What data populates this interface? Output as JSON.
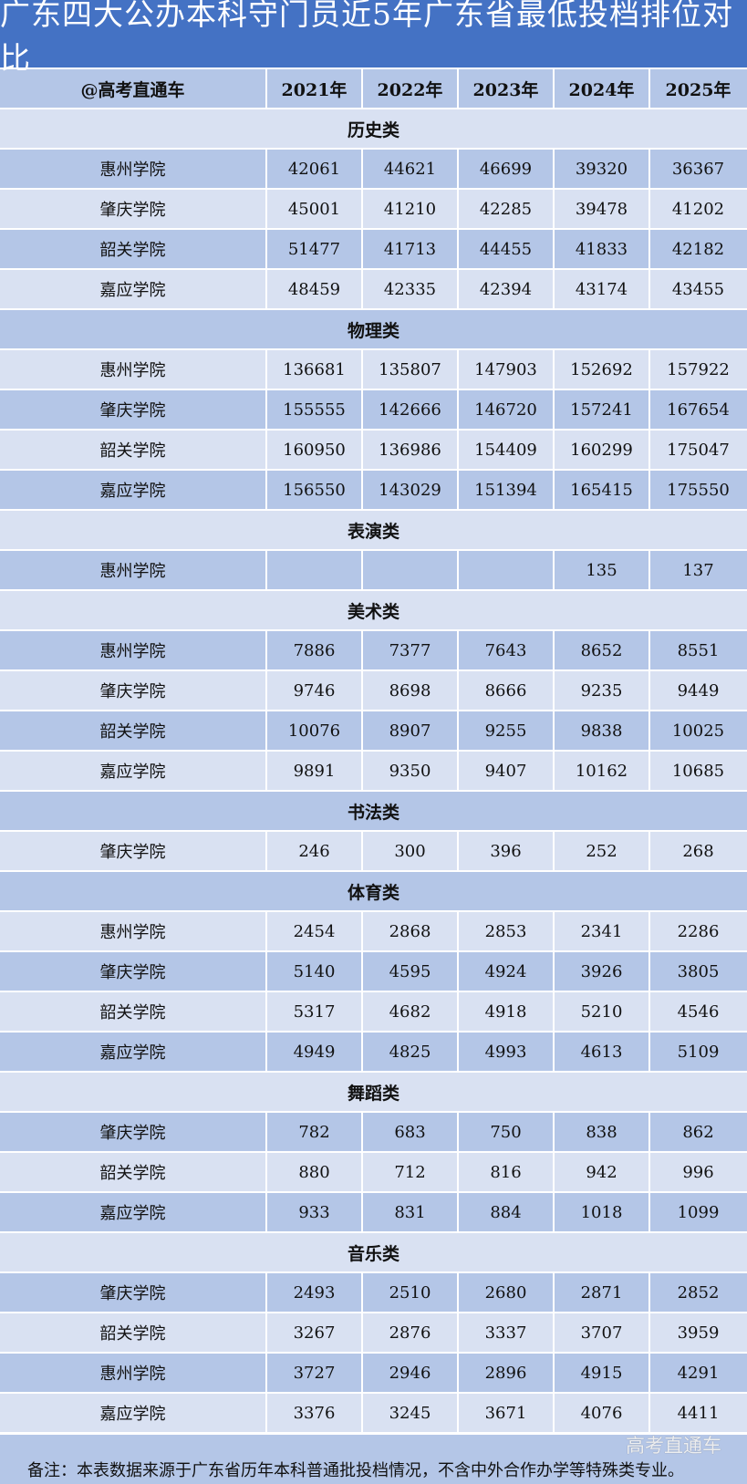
{
  "title": "广东四大公办本科守门员近5年广东省最低投档排位对比",
  "header": {
    "corner": "@高考直通车",
    "years": [
      "2021年",
      "2022年",
      "2023年",
      "2024年",
      "2025年"
    ]
  },
  "colors": {
    "title_bg": "#4472C4",
    "row_dark": "#B4C6E7",
    "row_light": "#D9E1F2"
  },
  "sections": [
    {
      "name": "历史类",
      "rows": [
        {
          "school": "惠州学院",
          "values": [
            "42061",
            "44621",
            "46699",
            "39320",
            "36367"
          ]
        },
        {
          "school": "肇庆学院",
          "values": [
            "45001",
            "41210",
            "42285",
            "39478",
            "41202"
          ]
        },
        {
          "school": "韶关学院",
          "values": [
            "51477",
            "41713",
            "44455",
            "41833",
            "42182"
          ]
        },
        {
          "school": "嘉应学院",
          "values": [
            "48459",
            "42335",
            "42394",
            "43174",
            "43455"
          ]
        }
      ]
    },
    {
      "name": "物理类",
      "rows": [
        {
          "school": "惠州学院",
          "values": [
            "136681",
            "135807",
            "147903",
            "152692",
            "157922"
          ]
        },
        {
          "school": "肇庆学院",
          "values": [
            "155555",
            "142666",
            "146720",
            "157241",
            "167654"
          ]
        },
        {
          "school": "韶关学院",
          "values": [
            "160950",
            "136986",
            "154409",
            "160299",
            "175047"
          ]
        },
        {
          "school": "嘉应学院",
          "values": [
            "156550",
            "143029",
            "151394",
            "165415",
            "175550"
          ]
        }
      ]
    },
    {
      "name": "表演类",
      "rows": [
        {
          "school": "惠州学院",
          "values": [
            "",
            "",
            "",
            "135",
            "137"
          ]
        }
      ]
    },
    {
      "name": "美术类",
      "rows": [
        {
          "school": "惠州学院",
          "values": [
            "7886",
            "7377",
            "7643",
            "8652",
            "8551"
          ]
        },
        {
          "school": "肇庆学院",
          "values": [
            "9746",
            "8698",
            "8666",
            "9235",
            "9449"
          ]
        },
        {
          "school": "韶关学院",
          "values": [
            "10076",
            "8907",
            "9255",
            "9838",
            "10025"
          ]
        },
        {
          "school": "嘉应学院",
          "values": [
            "9891",
            "9350",
            "9407",
            "10162",
            "10685"
          ]
        }
      ]
    },
    {
      "name": "书法类",
      "rows": [
        {
          "school": "肇庆学院",
          "values": [
            "246",
            "300",
            "396",
            "252",
            "268"
          ]
        }
      ]
    },
    {
      "name": "体育类",
      "rows": [
        {
          "school": "惠州学院",
          "values": [
            "2454",
            "2868",
            "2853",
            "2341",
            "2286"
          ]
        },
        {
          "school": "肇庆学院",
          "values": [
            "5140",
            "4595",
            "4924",
            "3926",
            "3805"
          ]
        },
        {
          "school": "韶关学院",
          "values": [
            "5317",
            "4682",
            "4918",
            "5210",
            "4546"
          ]
        },
        {
          "school": "嘉应学院",
          "values": [
            "4949",
            "4825",
            "4993",
            "4613",
            "5109"
          ]
        }
      ]
    },
    {
      "name": "舞蹈类",
      "rows": [
        {
          "school": "肇庆学院",
          "values": [
            "782",
            "683",
            "750",
            "838",
            "862"
          ]
        },
        {
          "school": "韶关学院",
          "values": [
            "880",
            "712",
            "816",
            "942",
            "996"
          ]
        },
        {
          "school": "嘉应学院",
          "values": [
            "933",
            "831",
            "884",
            "1018",
            "1099"
          ]
        }
      ]
    },
    {
      "name": "音乐类",
      "rows": [
        {
          "school": "肇庆学院",
          "values": [
            "2493",
            "2510",
            "2680",
            "2871",
            "2852"
          ]
        },
        {
          "school": "韶关学院",
          "values": [
            "3267",
            "2876",
            "3337",
            "3707",
            "3959"
          ]
        },
        {
          "school": "惠州学院",
          "values": [
            "3727",
            "2946",
            "2896",
            "4915",
            "4291"
          ]
        },
        {
          "school": "嘉应学院",
          "values": [
            "3376",
            "3245",
            "3671",
            "4076",
            "4411"
          ]
        }
      ]
    }
  ],
  "footer": {
    "note": "备注：本表数据来源于广东省历年本科普通批投档情况，不含中外合作办学等特殊类专业。",
    "watermark": "高考直通车"
  }
}
